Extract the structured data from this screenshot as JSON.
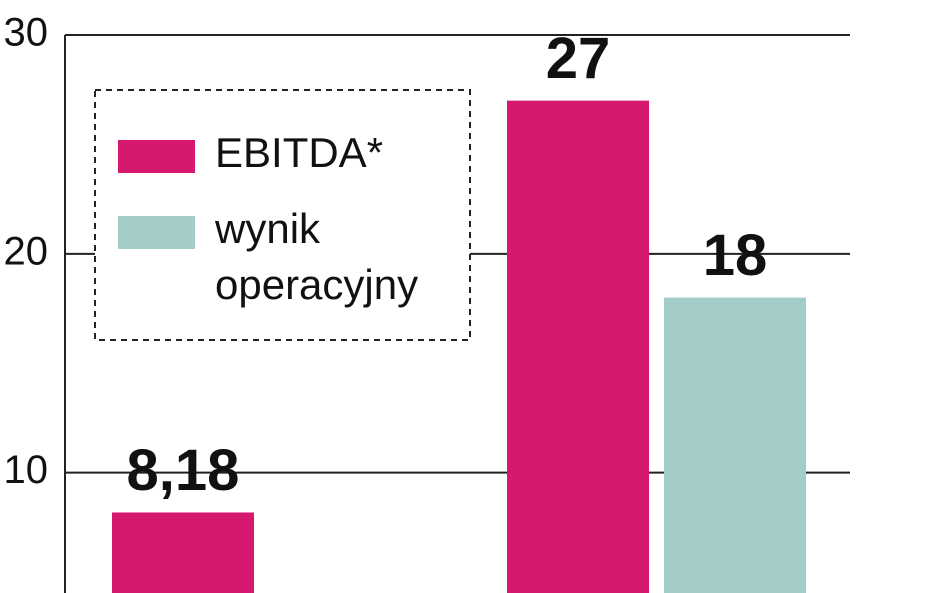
{
  "chart_data": {
    "type": "bar",
    "categories": [
      null,
      null
    ],
    "series": [
      {
        "name": "EBITDA*",
        "color": "#d6186f",
        "values": [
          8.18,
          27
        ],
        "value_labels": [
          "8,18",
          "27"
        ]
      },
      {
        "name": "wynik operacyjny",
        "color": "#a3cbc7",
        "values": [
          null,
          18
        ]
      }
    ],
    "ylim": [
      4.5,
      31.6
    ],
    "yticks": [
      10,
      20,
      30
    ],
    "grid": true
  }
}
